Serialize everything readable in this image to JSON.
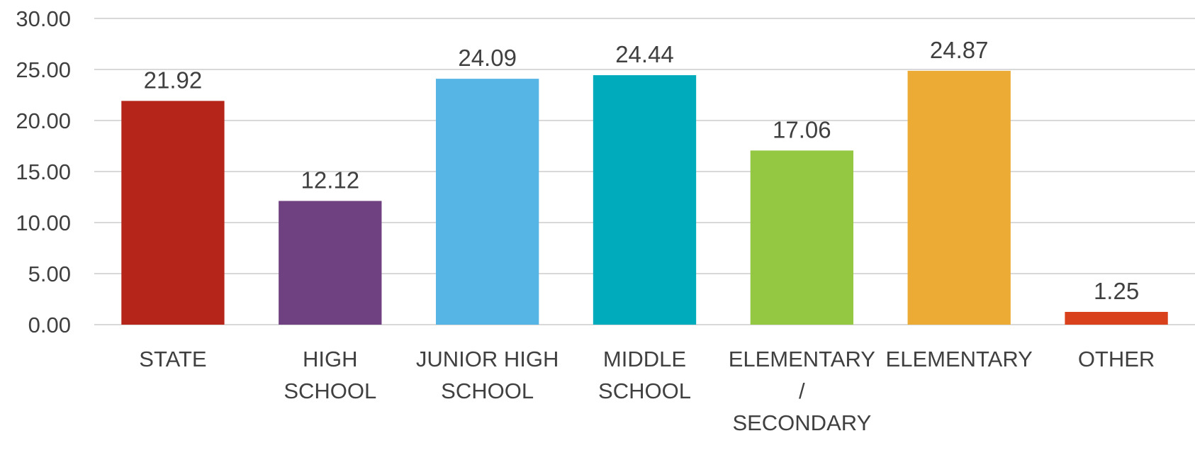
{
  "chart_data": {
    "type": "bar",
    "categories": [
      [
        "STATE"
      ],
      [
        "HIGH",
        "SCHOOL"
      ],
      [
        "JUNIOR HIGH",
        "SCHOOL"
      ],
      [
        "MIDDLE",
        "SCHOOL"
      ],
      [
        "ELEMENTARY",
        "/",
        "SECONDARY"
      ],
      [
        "ELEMENTARY"
      ],
      [
        "OTHER"
      ]
    ],
    "values": [
      21.92,
      12.12,
      24.09,
      24.44,
      17.06,
      24.87,
      1.25
    ],
    "data_labels": [
      "21.92",
      "12.12",
      "24.09",
      "24.44",
      "17.06",
      "24.87",
      "1.25"
    ],
    "colors": [
      "#b5251a",
      "#6f4180",
      "#57b5e5",
      "#00abbb",
      "#94c843",
      "#ebab34",
      "#d9411c"
    ],
    "yticks": [
      "0.00",
      "5.00",
      "10.00",
      "15.00",
      "20.00",
      "25.00",
      "30.00"
    ],
    "ylim": [
      0,
      30
    ],
    "grid": true,
    "legend": "none",
    "title": "",
    "xlabel": "",
    "ylabel": ""
  }
}
